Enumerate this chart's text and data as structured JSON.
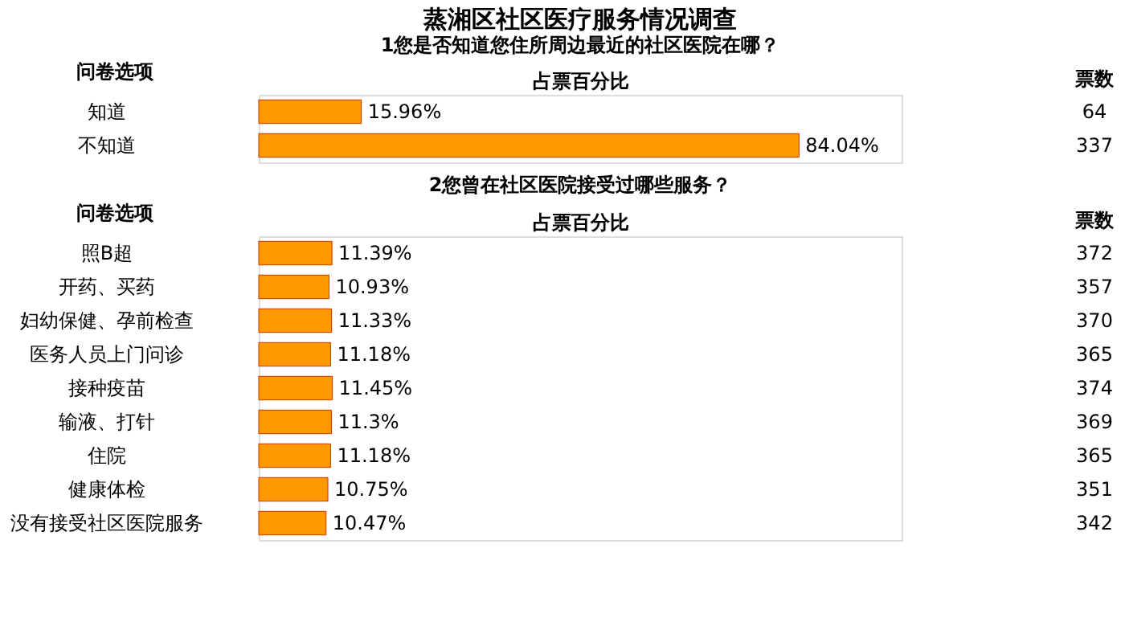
{
  "chart_data": [
    {
      "type": "bar",
      "orientation": "horizontal",
      "title": "蒸湘区社区医疗服务情况调查",
      "subtitle": "1您是否知道您住所周边最近的社区医院在哪？",
      "xlabel": "占票百分比",
      "ylabel": "问卷选项",
      "categories": [
        "知道",
        "不知道"
      ],
      "values": [
        15.96,
        84.04
      ],
      "value_labels": [
        "15.96%",
        "84.04%"
      ],
      "color": "#ff9900",
      "xlim": [
        0,
        100
      ],
      "tick_labels": false,
      "grid": false,
      "annotations": [
        "票数",
        "64",
        "337"
      ]
    },
    {
      "type": "bar",
      "orientation": "horizontal",
      "title": "2您曾在社区医院接受过哪些服务？",
      "xlabel": "占票百分比",
      "ylabel": "问卷选项",
      "categories": [
        "照B超",
        "开药、买药",
        "妇幼保健、孕前检查",
        "医务人员上门问诊",
        "接种疫苗",
        "输液、打针",
        "住院",
        "健康体检",
        "没有接受社区医院服务"
      ],
      "values": [
        11.39,
        10.93,
        11.33,
        11.18,
        11.45,
        11.3,
        11.18,
        10.75,
        10.47
      ],
      "value_labels": [
        "11.39%",
        "10.93%",
        "11.33%",
        "11.18%",
        "11.45%",
        "11.3%",
        "11.18%",
        "10.75%",
        "10.47%"
      ],
      "color": "#ff9900",
      "xlim": [
        0,
        100
      ],
      "tick_labels": false,
      "grid": false,
      "annotations": [
        "票数",
        "372",
        "357",
        "370",
        "365",
        "374",
        "369",
        "365",
        "351",
        "342"
      ]
    }
  ]
}
